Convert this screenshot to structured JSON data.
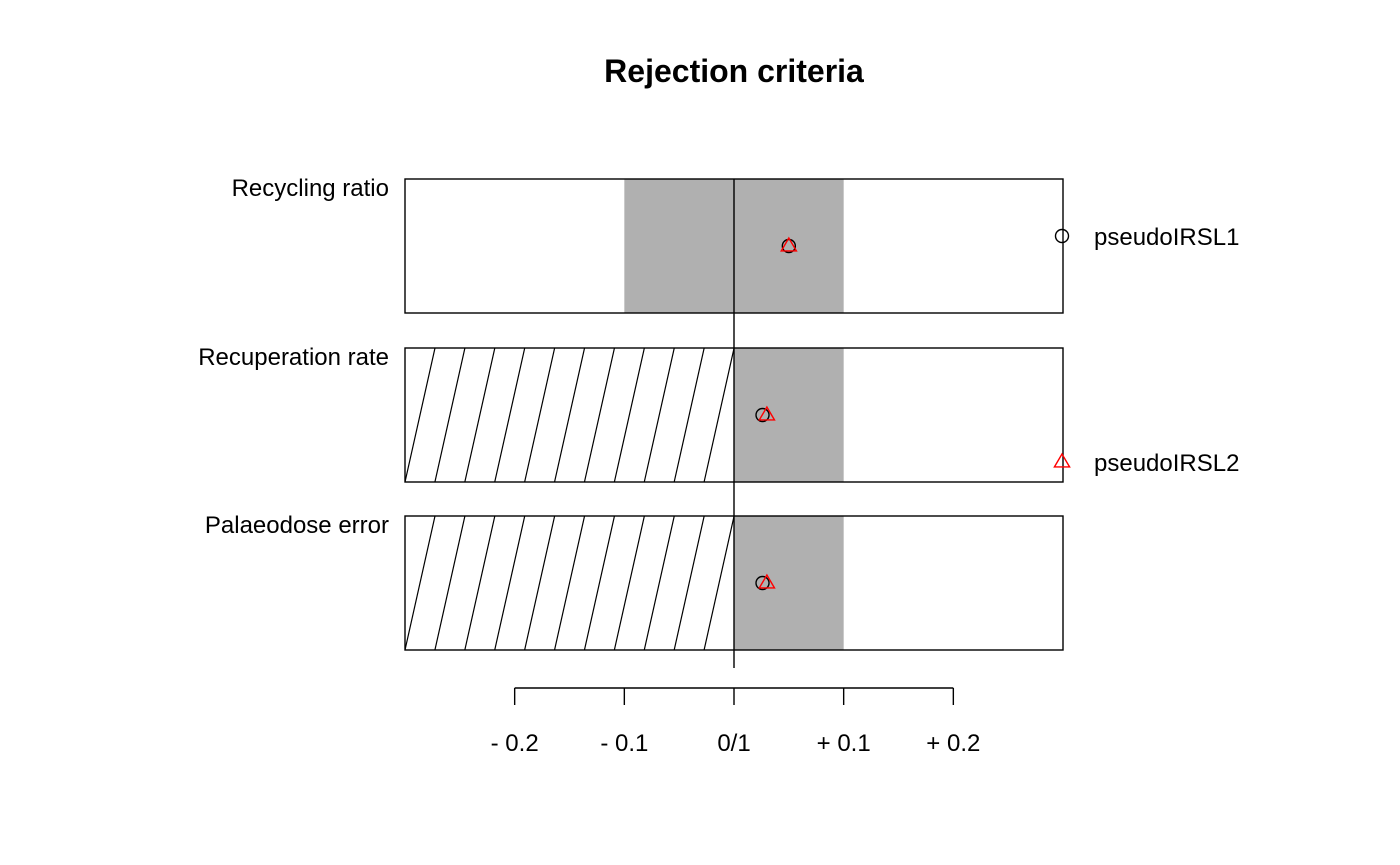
{
  "chart_data": {
    "type": "scatter",
    "title": "Rejection criteria",
    "x_axis": {
      "ticks": [
        -0.2,
        -0.1,
        0,
        0.1,
        0.2
      ],
      "tick_labels": [
        "- 0.2",
        "- 0.1",
        "0/1",
        "+ 0.1",
        "+ 0.2"
      ],
      "xlim": [
        -0.3,
        0.3
      ]
    },
    "panels": [
      {
        "label": "Recycling ratio",
        "accept_range": [
          -0.1,
          0.1
        ],
        "hatched_range": null,
        "values": {
          "pseudoIRSL1": 0.05,
          "pseudoIRSL2": 0.05
        }
      },
      {
        "label": "Recuperation rate",
        "accept_range": [
          0,
          0.1
        ],
        "hatched_range": [
          -0.3,
          0
        ],
        "values": {
          "pseudoIRSL1": 0.026,
          "pseudoIRSL2": 0.03
        }
      },
      {
        "label": "Palaeodose error",
        "accept_range": [
          0,
          0.1
        ],
        "hatched_range": [
          -0.3,
          0
        ],
        "values": {
          "pseudoIRSL1": 0.026,
          "pseudoIRSL2": 0.03
        }
      }
    ],
    "series": [
      {
        "name": "pseudoIRSL1",
        "marker": "circle",
        "color": "#000000"
      },
      {
        "name": "pseudoIRSL2",
        "marker": "triangle",
        "color": "#ff0000"
      }
    ],
    "colors": {
      "accept_fill": "#b0b0b0"
    },
    "legend": "right"
  }
}
